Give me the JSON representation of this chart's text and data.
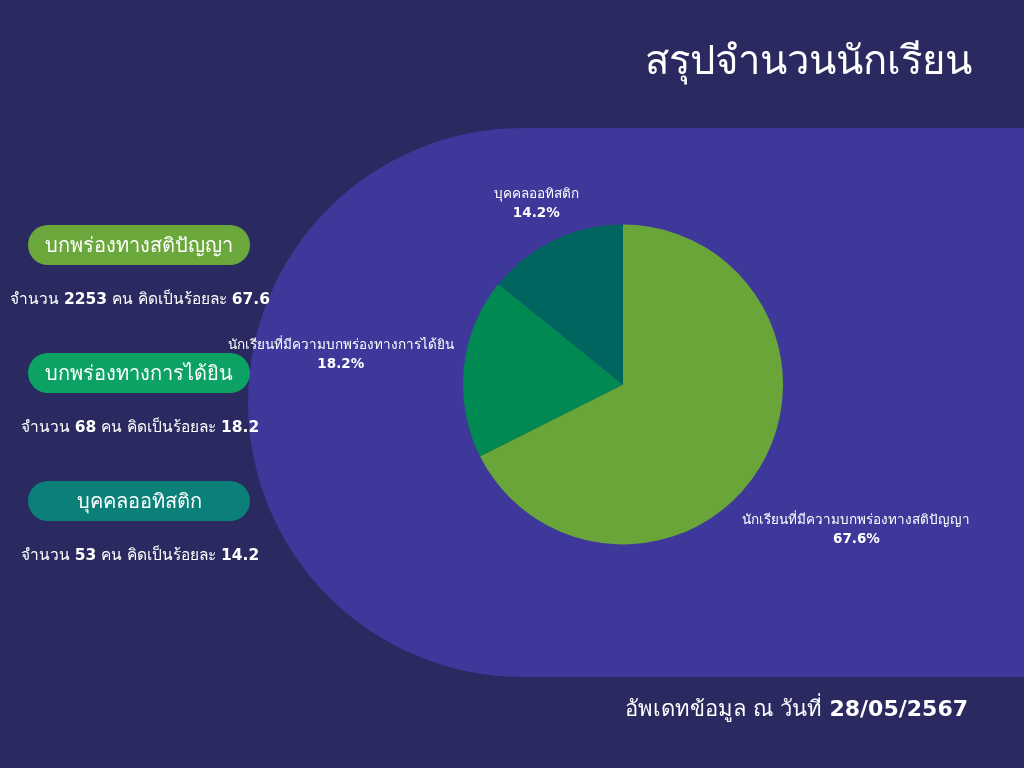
{
  "chart_data": [
    {
      "type": "pie",
      "title": "สรุปจำนวนนักเรียน",
      "categories": [
        "นักเรียนที่มีความบกพร่องทางสติปัญญา",
        "นักเรียนที่มีความบกพร่องทางการได้ยิน",
        "บุคคลออทิสติก"
      ],
      "values": [
        67.6,
        18.2,
        14.2
      ],
      "colors": [
        "#6aa53a",
        "#008a52",
        "#00655f"
      ],
      "value_labels": [
        "67.6%",
        "18.2%",
        "14.2%"
      ],
      "annotations": [
        "อัพเดทข้อมูล ณ วันที่ 28/05/2567"
      ]
    },
    {
      "type": "other",
      "categories": [
        "บกพร่องทางสติปัญญา",
        "บกพร่องทางการได้ยิน",
        "บุคคลออทิสติก"
      ],
      "colors": [
        "#6aa83c",
        "#0ba264",
        "#0a8079"
      ],
      "annotations": [
        "จำนวน 2253 คน คิดเป็นร้อยละ 67.6",
        "จำนวน 68 คน คิดเป็นร้อยละ 18.2",
        "จำนวน 53 คน คิดเป็นร้อยละ 14.2"
      ]
    }
  ]
}
